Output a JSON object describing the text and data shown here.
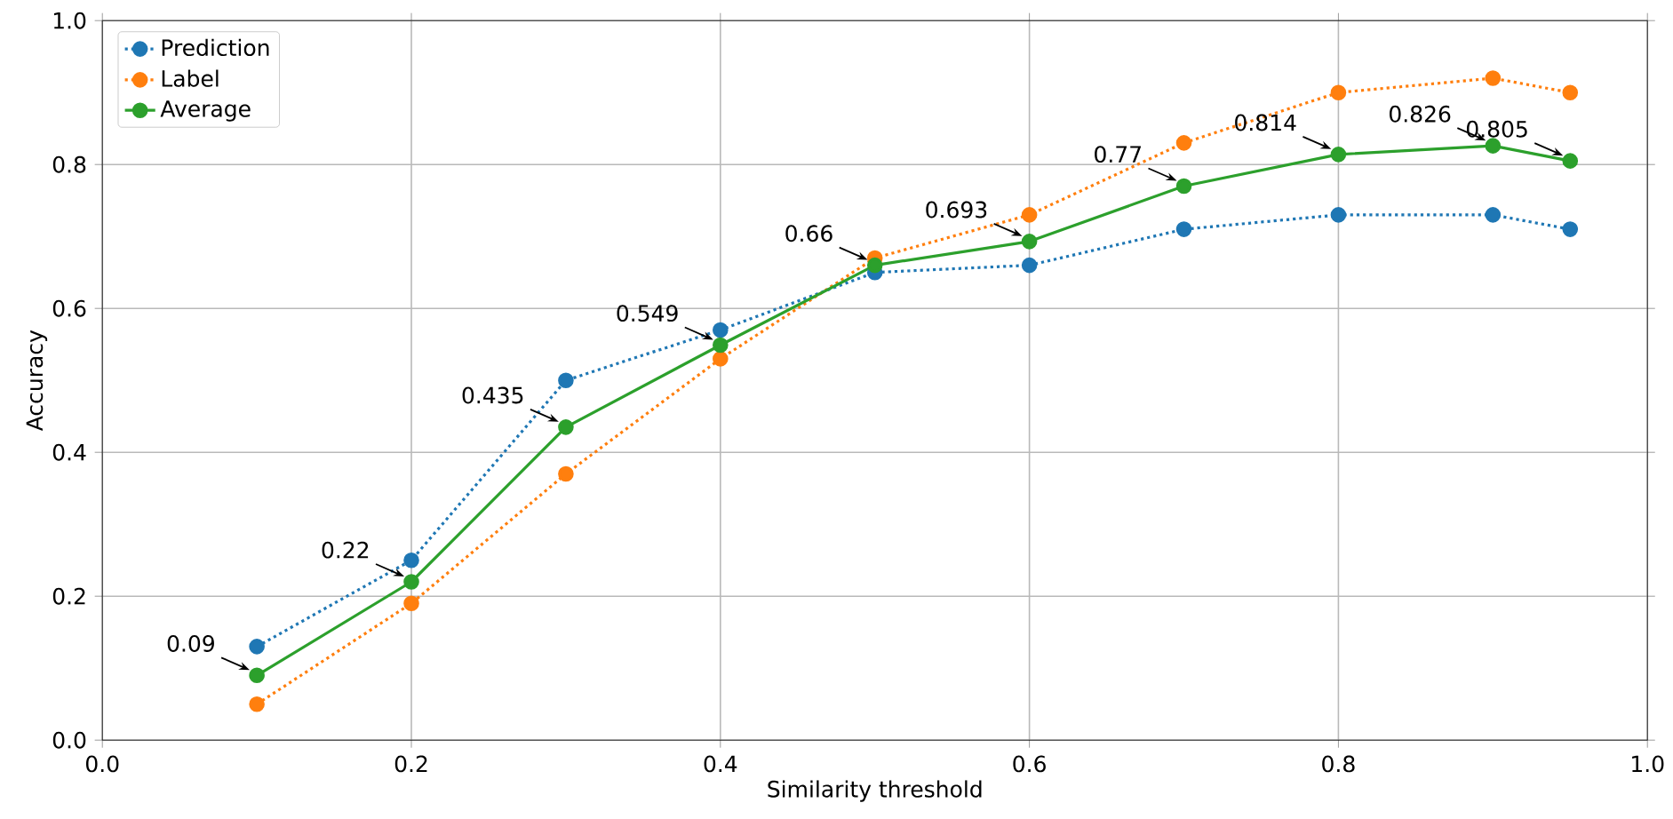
{
  "chart_data": {
    "type": "line",
    "xlabel": "Similarity threshold",
    "ylabel": "Accuracy",
    "x": [
      0.1,
      0.2,
      0.3,
      0.4,
      0.5,
      0.6,
      0.7,
      0.8,
      0.9,
      0.95
    ],
    "series": [
      {
        "name": "Prediction",
        "color": "#1f77b4",
        "line_style": "dotted",
        "values": [
          0.13,
          0.25,
          0.5,
          0.57,
          0.65,
          0.66,
          0.71,
          0.73,
          0.73,
          0.71
        ]
      },
      {
        "name": "Label",
        "color": "#ff7f0e",
        "line_style": "dotted",
        "values": [
          0.05,
          0.19,
          0.37,
          0.53,
          0.67,
          0.73,
          0.83,
          0.9,
          0.92,
          0.9
        ]
      },
      {
        "name": "Average",
        "color": "#2ca02c",
        "line_style": "solid",
        "values": [
          0.09,
          0.22,
          0.435,
          0.549,
          0.66,
          0.693,
          0.77,
          0.814,
          0.826,
          0.805
        ],
        "value_labels": [
          "0.09",
          "0.22",
          "0.435",
          "0.549",
          "0.66",
          "0.693",
          "0.77",
          "0.814",
          "0.826",
          "0.805"
        ]
      }
    ],
    "xlim": [
      0.0,
      1.0
    ],
    "ylim": [
      0.0,
      1.0
    ],
    "xticks": [
      {
        "value": 0.0,
        "label": "0.0"
      },
      0.2,
      0.4,
      0.6,
      0.8,
      {
        "value": 1.0,
        "label": "1.0"
      }
    ],
    "yticks": [
      {
        "value": 0.0,
        "label": "0.0"
      },
      0.2,
      0.4,
      0.6,
      0.8,
      {
        "value": 1.0,
        "label": "1.0"
      }
    ],
    "grid": true,
    "legend": "top left",
    "marker": "circle"
  }
}
